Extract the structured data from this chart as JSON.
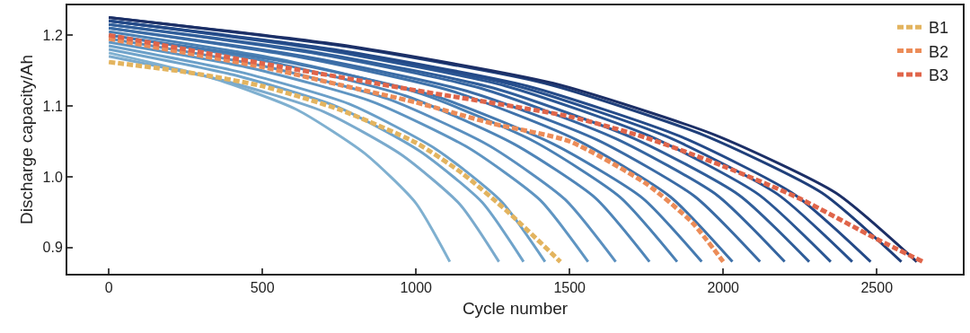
{
  "chart_data": {
    "type": "line",
    "xlabel": "Cycle number",
    "ylabel": "Discharge capacity/Ah",
    "xlim": [
      -135,
      2780
    ],
    "ylim": [
      0.863,
      1.242
    ],
    "xticks": [
      0,
      500,
      1000,
      1500,
      2000,
      2500
    ],
    "yticks": [
      {
        "value": 0.9,
        "label": "0.9"
      },
      {
        "value": 1.0,
        "label": "1.0"
      },
      {
        "value": 1.1,
        "label": "1.1"
      },
      {
        "value": 1.2,
        "label": "1.2"
      }
    ],
    "grid": false,
    "legend": "top right",
    "line_style": "solid",
    "series": [
      {
        "color": "#7fb0d0",
        "x": [
          0,
          333,
          611,
          833,
          999,
          1110
        ],
        "values": [
          1.175,
          1.14,
          1.095,
          1.033,
          0.963,
          0.88
        ]
      },
      {
        "color": "#7aaacd",
        "x": [
          0,
          381,
          699,
          953,
          1143,
          1270
        ],
        "values": [
          1.17,
          1.135,
          1.092,
          1.031,
          0.961,
          0.88
        ]
      },
      {
        "color": "#6fa3ca",
        "x": [
          0,
          405,
          743,
          1013,
          1215,
          1350
        ],
        "values": [
          1.18,
          1.144,
          1.099,
          1.036,
          0.964,
          0.88
        ]
      },
      {
        "color": "#6a9fc8",
        "x": [
          0,
          426,
          781,
          1065,
          1278,
          1420
        ],
        "values": [
          1.185,
          1.148,
          1.103,
          1.039,
          0.965,
          0.88
        ]
      },
      {
        "color": "#5f95c2",
        "x": [
          0,
          468,
          858,
          1170,
          1404,
          1560
        ],
        "values": [
          1.19,
          1.153,
          1.106,
          1.041,
          0.967,
          0.88
        ]
      },
      {
        "color": "#5a8fbf",
        "x": [
          0,
          495,
          908,
          1238,
          1485,
          1650
        ],
        "values": [
          1.195,
          1.157,
          1.11,
          1.044,
          0.968,
          0.88
        ]
      },
      {
        "color": "#4f85b8",
        "x": [
          0,
          528,
          968,
          1320,
          1584,
          1760
        ],
        "values": [
          1.2,
          1.162,
          1.114,
          1.046,
          0.97,
          0.88
        ]
      },
      {
        "color": "#4a80b4",
        "x": [
          0,
          555,
          1018,
          1388,
          1665,
          1850
        ],
        "values": [
          1.205,
          1.166,
          1.117,
          1.049,
          0.971,
          0.88
        ]
      },
      {
        "color": "#457ab0",
        "x": [
          0,
          579,
          1062,
          1448,
          1737,
          1930
        ],
        "values": [
          1.2,
          1.162,
          1.114,
          1.046,
          0.97,
          0.88
        ]
      },
      {
        "color": "#3f72aa",
        "x": [
          0,
          609,
          1117,
          1523,
          1827,
          2030
        ],
        "values": [
          1.21,
          1.17,
          1.121,
          1.052,
          0.972,
          0.88
        ]
      },
      {
        "color": "#3a6ba5",
        "x": [
          0,
          636,
          1166,
          1590,
          1908,
          2120
        ],
        "values": [
          1.21,
          1.17,
          1.121,
          1.052,
          0.972,
          0.88
        ]
      },
      {
        "color": "#3565a0",
        "x": [
          0,
          660,
          1210,
          1650,
          1980,
          2200
        ],
        "values": [
          1.215,
          1.175,
          1.125,
          1.054,
          0.974,
          0.88
        ]
      },
      {
        "color": "#305e9a",
        "x": [
          0,
          684,
          1254,
          1710,
          2052,
          2280
        ],
        "values": [
          1.215,
          1.175,
          1.125,
          1.054,
          0.974,
          0.88
        ]
      },
      {
        "color": "#2b5794",
        "x": [
          0,
          705,
          1293,
          1763,
          2115,
          2350
        ],
        "values": [
          1.22,
          1.179,
          1.128,
          1.057,
          0.975,
          0.88
        ]
      },
      {
        "color": "#27508e",
        "x": [
          0,
          726,
          1331,
          1815,
          2178,
          2420
        ],
        "values": [
          1.22,
          1.179,
          1.128,
          1.057,
          0.975,
          0.88
        ]
      },
      {
        "color": "#244a88",
        "x": [
          0,
          744,
          1364,
          1860,
          2232,
          2480
        ],
        "values": [
          1.22,
          1.179,
          1.128,
          1.057,
          0.975,
          0.88
        ]
      },
      {
        "color": "#1f3f7a",
        "x": [
          0,
          774,
          1419,
          1935,
          2322,
          2580
        ],
        "values": [
          1.225,
          1.184,
          1.132,
          1.059,
          0.977,
          0.88
        ]
      },
      {
        "color": "#1c2f66",
        "x": [
          0,
          789,
          1447,
          1973,
          2367,
          2630
        ],
        "values": [
          1.225,
          1.184,
          1.132,
          1.059,
          0.977,
          0.88
        ]
      },
      {
        "name": "B1",
        "color": "#e3b45f",
        "line_style": "dashed",
        "x": [
          0,
          250,
          500,
          750,
          1000,
          1150,
          1300,
          1470
        ],
        "values": [
          1.162,
          1.148,
          1.128,
          1.095,
          1.048,
          1.005,
          0.95,
          0.88
        ]
      },
      {
        "name": "B2",
        "color": "#ec8c58",
        "line_style": "dashed",
        "x": [
          0,
          250,
          500,
          750,
          1000,
          1250,
          1500,
          1750,
          1900,
          2000
        ],
        "values": [
          1.195,
          1.175,
          1.155,
          1.13,
          1.105,
          1.075,
          1.05,
          0.99,
          0.935,
          0.88
        ]
      },
      {
        "name": "B3",
        "color": "#e0654a",
        "line_style": "dashed",
        "x": [
          0,
          500,
          1000,
          1500,
          1750,
          2000,
          2250,
          2500,
          2650
        ],
        "values": [
          1.2,
          1.16,
          1.122,
          1.085,
          1.055,
          1.015,
          0.969,
          0.912,
          0.88
        ]
      }
    ]
  }
}
